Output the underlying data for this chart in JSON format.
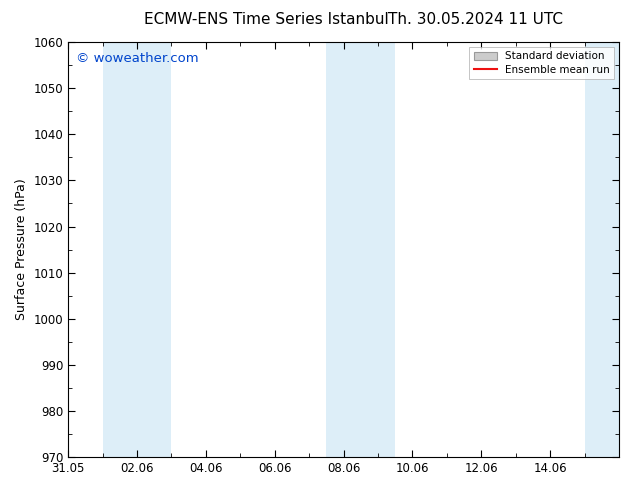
{
  "title_left": "ECMW-ENS Time Series Istanbul",
  "title_right": "Th. 30.05.2024 11 UTC",
  "ylabel": "Surface Pressure (hPa)",
  "ylim": [
    970,
    1060
  ],
  "yticks": [
    970,
    980,
    990,
    1000,
    1010,
    1020,
    1030,
    1040,
    1050,
    1060
  ],
  "xlim_start": 0,
  "xlim_end": 16,
  "xtick_positions": [
    0,
    2,
    4,
    6,
    8,
    10,
    12,
    14
  ],
  "xtick_labels": [
    "31.05",
    "02.06",
    "04.06",
    "06.06",
    "08.06",
    "10.06",
    "12.06",
    "14.06"
  ],
  "shaded_bands": [
    {
      "x_start": 1.0,
      "x_end": 3.0,
      "color": "#ddeef8"
    },
    {
      "x_start": 7.5,
      "x_end": 9.5,
      "color": "#ddeef8"
    },
    {
      "x_start": 15.0,
      "x_end": 16.0,
      "color": "#ddeef8"
    }
  ],
  "watermark": "© woweather.com",
  "watermark_color": "#0044cc",
  "watermark_fontsize": 9.5,
  "legend_std_color": "#cccccc",
  "legend_mean_color": "#ee1111",
  "background_color": "#ffffff",
  "title_fontsize": 11,
  "ylabel_fontsize": 9,
  "tick_fontsize": 8.5
}
